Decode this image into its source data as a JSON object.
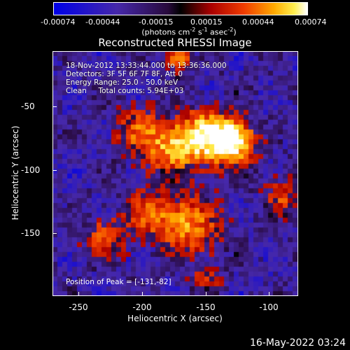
{
  "colorbar": {
    "ticks": [
      "-0.00074",
      "-0.00044",
      "-0.00015",
      "0.00015",
      "0.00044",
      "0.00074"
    ],
    "unit_text": "(photons cm",
    "unit_exp1": "-2",
    "unit_mid": " s",
    "unit_exp2": "-1",
    "unit_tail": " asec",
    "unit_exp3": "-2",
    "unit_close": ")"
  },
  "title": "Reconstructed RHESSI Image",
  "info": {
    "time_range": "18-Nov-2012 13:33:44.000 to 13:36:36.000",
    "detectors": "Detectors: 3F 5F 6F 7F 8F, Att 0",
    "energy_range": "Energy Range: 25.0 - 50.0 keV",
    "method": "Clean     Total counts: 5.94E+03",
    "peak": "Position of Peak = [-131,-82]"
  },
  "axes": {
    "xlabel": "Heliocentric X (arcsec)",
    "ylabel": "Heliocentric Y (arcsec)",
    "xticks": [
      "-250",
      "-200",
      "-150",
      "-100"
    ],
    "yticks": [
      "-50",
      "-100",
      "-150"
    ]
  },
  "footer": {
    "date": "16-May-2022 03:24"
  },
  "colors": {
    "background": "#000000",
    "foreground": "#ffffff"
  }
}
